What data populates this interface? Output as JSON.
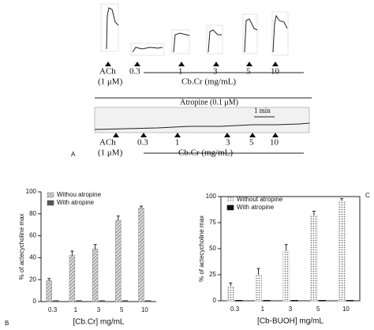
{
  "panel_a": {
    "label": "A",
    "agonist": "ACh",
    "agonist_dose": "(1 μM)",
    "doses": [
      "0.3",
      "1",
      "3",
      "5",
      "10"
    ],
    "dose_label": "Cb.Cr (mg/mL)",
    "atropine": "Atropine (0.1 μM)",
    "scale": "1 min"
  },
  "chart_data": [
    {
      "type": "bar",
      "panel": "B",
      "ylabel": "% of actecycholine max",
      "xlabel": "[Cb.Cr] mg/mL",
      "categories": [
        "0.3",
        "1",
        "3",
        "5",
        "10"
      ],
      "series": [
        {
          "name": "Withou atropine",
          "color": "#8c8c8c",
          "values": [
            19,
            42,
            48,
            74,
            85
          ],
          "errors": [
            2,
            4,
            4,
            4,
            2
          ]
        },
        {
          "name": "With atropine",
          "color": "#555555",
          "values": [
            1,
            1,
            1,
            1,
            1
          ]
        }
      ],
      "ylim": [
        0,
        100
      ],
      "yticks": [
        0,
        20,
        40,
        60,
        80,
        100
      ],
      "legend": "upper-left"
    },
    {
      "type": "bar",
      "panel": "C",
      "ylabel": "% of actecycholine max",
      "xlabel": "[Cb-BUOH] mg/mL",
      "categories": [
        "0.3",
        "1",
        "3",
        "5",
        "10"
      ],
      "series": [
        {
          "name": "Without atropine",
          "color": "#d9d9d9",
          "values": [
            14,
            25,
            48,
            82,
            96
          ],
          "errors": [
            3,
            6,
            6,
            4,
            2
          ]
        },
        {
          "name": "With atropine",
          "color": "#111111",
          "values": [
            0.5,
            0.5,
            0.5,
            0.5,
            0.5
          ]
        }
      ],
      "ylim": [
        0,
        100
      ],
      "yticks": [
        0,
        25,
        50,
        75,
        100
      ],
      "legend": "upper-left"
    }
  ]
}
